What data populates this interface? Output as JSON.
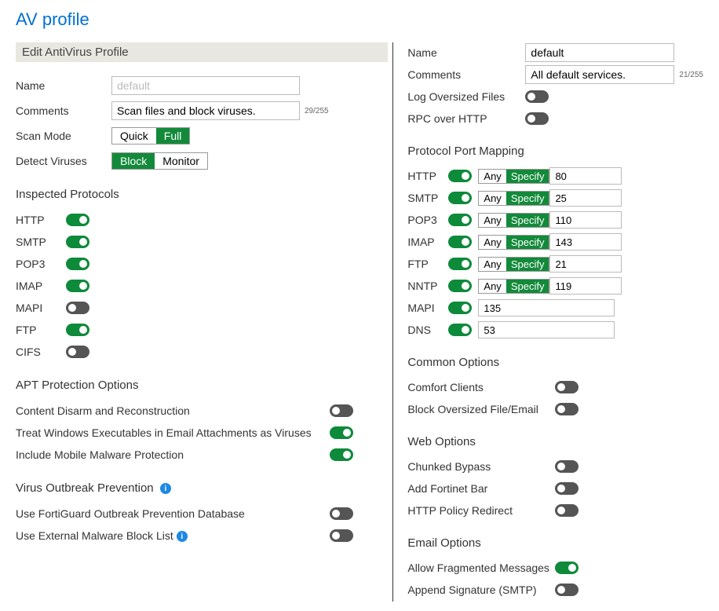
{
  "colors": {
    "title": "#006fcf",
    "active_green": "#128a3a",
    "toggle_on": "#0d8a3a",
    "toggle_off": "#555555",
    "header_bg": "#e8e8e0",
    "info_blue": "#1e88e5"
  },
  "title": "AV profile",
  "left": {
    "header": "Edit AntiVirus Profile",
    "name": {
      "label": "Name",
      "placeholder": "default",
      "value": ""
    },
    "comments": {
      "label": "Comments",
      "value": "Scan files and block viruses.",
      "counter": "29/255"
    },
    "scan_mode": {
      "label": "Scan Mode",
      "options": [
        "Quick",
        "Full"
      ],
      "active": "Full"
    },
    "detect": {
      "label": "Detect Viruses",
      "options": [
        "Block",
        "Monitor"
      ],
      "active": "Block"
    },
    "inspected_title": "Inspected Protocols",
    "inspected": [
      {
        "name": "HTTP",
        "on": true
      },
      {
        "name": "SMTP",
        "on": true
      },
      {
        "name": "POP3",
        "on": true
      },
      {
        "name": "IMAP",
        "on": true
      },
      {
        "name": "MAPI",
        "on": false
      },
      {
        "name": "FTP",
        "on": true
      },
      {
        "name": "CIFS",
        "on": false
      }
    ],
    "apt_title": "APT Protection Options",
    "apt": [
      {
        "label": "Content Disarm and Reconstruction",
        "on": false
      },
      {
        "label": "Treat Windows Executables in Email Attachments as Viruses",
        "on": true
      },
      {
        "label": "Include Mobile Malware Protection",
        "on": true
      }
    ],
    "vop_title": "Virus Outbreak Prevention",
    "vop": [
      {
        "label": "Use FortiGuard Outbreak Prevention Database",
        "on": false,
        "info": false
      },
      {
        "label": "Use External Malware Block List",
        "on": false,
        "info": true
      }
    ]
  },
  "right": {
    "name": {
      "label": "Name",
      "value": "default"
    },
    "comments": {
      "label": "Comments",
      "value": "All default services.",
      "counter": "21/255"
    },
    "log_oversized": {
      "label": "Log Oversized Files",
      "on": false
    },
    "rpc_http": {
      "label": "RPC over HTTP",
      "on": false
    },
    "ppm_title": "Protocol Port Mapping",
    "ppm": [
      {
        "name": "HTTP",
        "on": true,
        "mode": "Specify",
        "port": "80"
      },
      {
        "name": "SMTP",
        "on": true,
        "mode": "Specify",
        "port": "25"
      },
      {
        "name": "POP3",
        "on": true,
        "mode": "Specify",
        "port": "110"
      },
      {
        "name": "IMAP",
        "on": true,
        "mode": "Specify",
        "port": "143"
      },
      {
        "name": "FTP",
        "on": true,
        "mode": "Specify",
        "port": "21"
      },
      {
        "name": "NNTP",
        "on": true,
        "mode": "Specify",
        "port": "119"
      }
    ],
    "ppm2": [
      {
        "name": "MAPI",
        "on": true,
        "port": "135"
      },
      {
        "name": "DNS",
        "on": true,
        "port": "53"
      }
    ],
    "common_title": "Common Options",
    "common": [
      {
        "label": "Comfort Clients",
        "on": false
      },
      {
        "label": "Block Oversized File/Email",
        "on": false
      }
    ],
    "web_title": "Web Options",
    "web": [
      {
        "label": "Chunked Bypass",
        "on": false
      },
      {
        "label": "Add Fortinet Bar",
        "on": false
      },
      {
        "label": "HTTP Policy Redirect",
        "on": false
      }
    ],
    "email_title": "Email Options",
    "email": [
      {
        "label": "Allow Fragmented Messages",
        "on": true
      },
      {
        "label": "Append Signature (SMTP)",
        "on": false
      }
    ]
  },
  "seg_labels": {
    "any": "Any",
    "specify": "Specify"
  }
}
